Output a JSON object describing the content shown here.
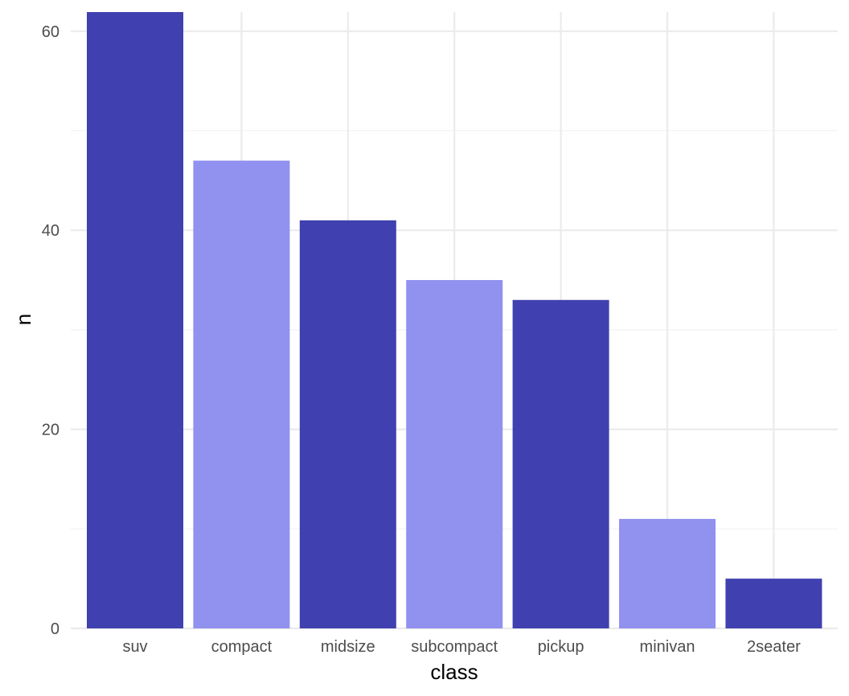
{
  "chart_data": {
    "type": "bar",
    "title": "",
    "xlabel": "class",
    "ylabel": "n",
    "categories": [
      "suv",
      "compact",
      "midsize",
      "subcompact",
      "pickup",
      "minivan",
      "2seater"
    ],
    "values": [
      62,
      47,
      41,
      35,
      33,
      11,
      5
    ],
    "yticks": [
      0,
      20,
      40,
      60
    ],
    "ytick_labels": [
      "0",
      "20",
      "40",
      "60"
    ],
    "ylim": [
      0,
      62
    ],
    "grid": true,
    "legend": "none",
    "colors": [
      "#4040b0",
      "#9191ef",
      "#4040b0",
      "#9191ef",
      "#4040b0",
      "#9191ef",
      "#4040b0"
    ]
  }
}
